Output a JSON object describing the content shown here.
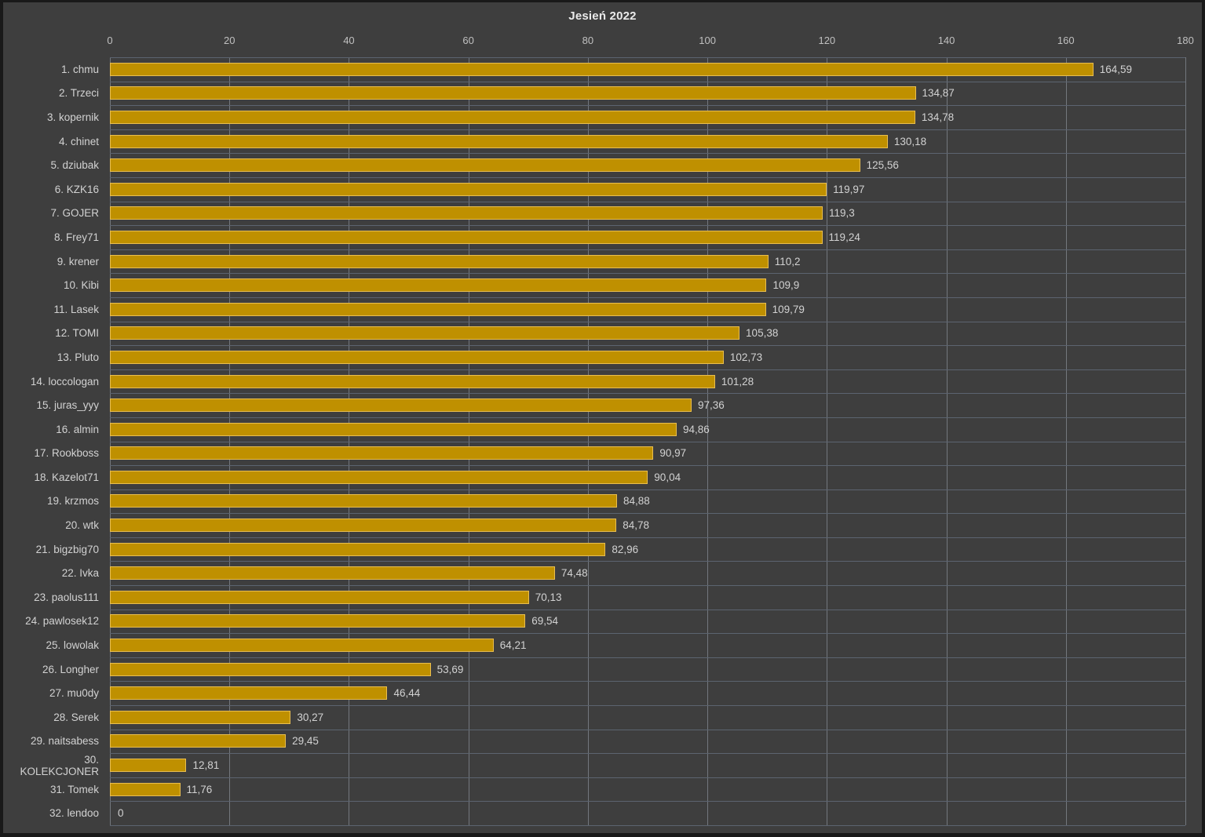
{
  "window": {
    "background": "#3E3E3E",
    "frame_border": "#191919"
  },
  "chart_data": {
    "type": "bar",
    "orientation": "horizontal",
    "title": "Jesień 2022",
    "categories": [
      "1. chmu",
      "2. Trzeci",
      "3. kopernik",
      "4. chinet",
      "5. dziubak",
      "6. KZK16",
      "7. GOJER",
      "8. Frey71",
      "9. krener",
      "10. Kibi",
      "11. Lasek",
      "12. TOMI",
      "13. Pluto",
      "14. loccologan",
      "15. juras_yyy",
      "16. almin",
      "17. Rookboss",
      "18. Kazelot71",
      "19. krzmos",
      "20. wtk",
      "21. bigzbig70",
      "22. Ivka",
      "23. paolus111",
      "24. pawlosek12",
      "25. lowolak",
      "26. Longher",
      "27. mu0dy",
      "28. Serek",
      "29. naitsabess",
      "30. KOLEKCJONER",
      "31. Tomek",
      "32. lendoo"
    ],
    "values": [
      164.59,
      134.87,
      134.78,
      130.18,
      125.56,
      119.97,
      119.3,
      119.24,
      110.2,
      109.9,
      109.79,
      105.38,
      102.73,
      101.28,
      97.36,
      94.86,
      90.97,
      90.04,
      84.88,
      84.78,
      82.96,
      74.48,
      70.13,
      69.54,
      64.21,
      53.69,
      46.44,
      30.27,
      29.45,
      12.81,
      11.76,
      0
    ],
    "value_labels": [
      "164,59",
      "134,87",
      "134,78",
      "130,18",
      "125,56",
      "119,97",
      "119,3",
      "119,24",
      "110,2",
      "109,9",
      "109,79",
      "105,38",
      "102,73",
      "101,28",
      "97,36",
      "94,86",
      "90,97",
      "90,04",
      "84,88",
      "84,78",
      "82,96",
      "74,48",
      "70,13",
      "69,54",
      "64,21",
      "53,69",
      "46,44",
      "30,27",
      "29,45",
      "12,81",
      "11,76",
      "0"
    ],
    "x_ticks": [
      "0",
      "20",
      "40",
      "60",
      "80",
      "100",
      "120",
      "140",
      "160",
      "180"
    ],
    "xlim": [
      0,
      180
    ],
    "grid": true,
    "legend": false,
    "colors": {
      "bar_fill": "#BF9000",
      "bar_border": "#E9BE50",
      "gridline_horizontal": "#5C6470",
      "gridline_vertical": "#73777D",
      "tick_text": "#C0C0C0",
      "label_text": "#D2D2D2",
      "title_text": "#EAEAEA"
    }
  }
}
